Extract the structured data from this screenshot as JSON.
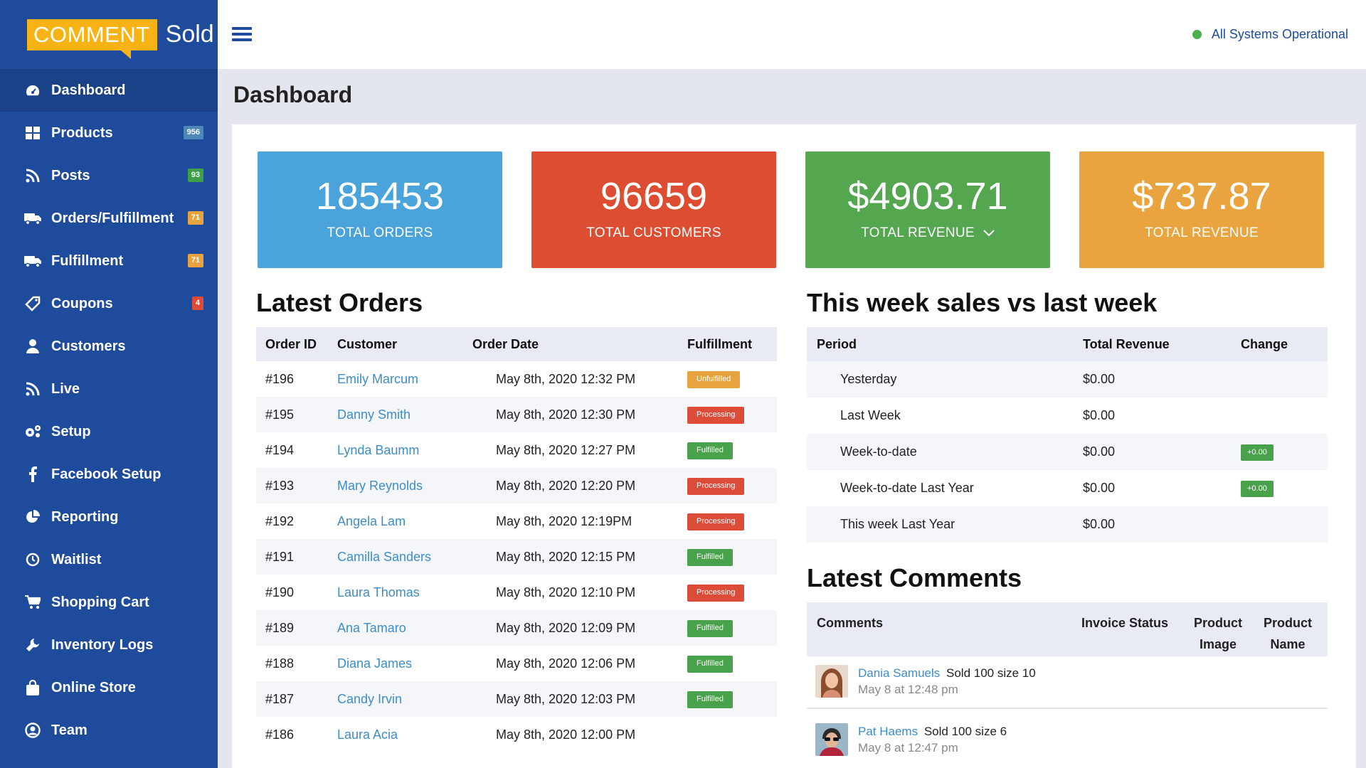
{
  "logo": {
    "comment": "COMMENT",
    "sold": "Sold"
  },
  "sidebar": {
    "items": [
      {
        "label": "Dashboard",
        "icon": "speedometer-icon",
        "active": true
      },
      {
        "label": "Products",
        "icon": "grid-icon",
        "badge": "956",
        "badge_color": "#4f87b8"
      },
      {
        "label": "Posts",
        "icon": "rss-icon",
        "badge": "93",
        "badge_color": "#3f9f46"
      },
      {
        "label": "Orders/Fulfillment",
        "icon": "truck-icon",
        "badge": "71",
        "badge_color": "#e8a23e"
      },
      {
        "label": "Fulfillment",
        "icon": "truck-icon",
        "badge": "71",
        "badge_color": "#e8a23e"
      },
      {
        "label": "Coupons",
        "icon": "tag-icon",
        "badge": "4",
        "badge_color": "#dd4b39"
      },
      {
        "label": "Customers",
        "icon": "user-icon"
      },
      {
        "label": "Live",
        "icon": "rss-icon"
      },
      {
        "label": "Setup",
        "icon": "gears-icon"
      },
      {
        "label": "Facebook Setup",
        "icon": "facebook-icon"
      },
      {
        "label": "Reporting",
        "icon": "pie-chart-icon"
      },
      {
        "label": "Waitlist",
        "icon": "clock-icon"
      },
      {
        "label": "Shopping Cart",
        "icon": "cart-icon"
      },
      {
        "label": "Inventory Logs",
        "icon": "wrench-icon"
      },
      {
        "label": "Online Store",
        "icon": "shopping-bag-icon"
      },
      {
        "label": "Team",
        "icon": "user-circle-icon"
      }
    ]
  },
  "header": {
    "status": "All Systems Operational",
    "status_color": "#4cae4c"
  },
  "page_title": "Dashboard",
  "stats": [
    {
      "value": "185453",
      "label": "TOTAL ORDERS",
      "color": "#4ba3db"
    },
    {
      "value": "96659",
      "label": "TOTAL CUSTOMERS",
      "color": "#dd4d32"
    },
    {
      "value": "$4903.71",
      "label": "TOTAL REVENUE",
      "color": "#54a74f",
      "dropdown": true
    },
    {
      "value": "$737.87",
      "label": "TOTAL REVENUE",
      "color": "#e9a440"
    }
  ],
  "latest_orders": {
    "title": "Latest Orders",
    "columns": [
      "Order ID",
      "Customer",
      "Order Date",
      "Fulfillment"
    ],
    "rows": [
      {
        "id": "#196",
        "customer": "Emily Marcum",
        "date": "May 8th, 2020 12:32 PM",
        "status": "Unfulfilled"
      },
      {
        "id": "#195",
        "customer": "Danny Smith",
        "date": "May 8th, 2020 12:30 PM",
        "status": "Processing"
      },
      {
        "id": "#194",
        "customer": "Lynda Baumm",
        "date": "May 8th, 2020 12:27 PM",
        "status": "Fulfilled"
      },
      {
        "id": "#193",
        "customer": "Mary Reynolds",
        "date": "May 8th, 2020 12:20 PM",
        "status": "Processing"
      },
      {
        "id": "#192",
        "customer": "Angela Lam",
        "date": "May 8th, 2020 12:19PM",
        "status": "Processing"
      },
      {
        "id": "#191",
        "customer": "Camilla Sanders",
        "date": "May 8th, 2020 12:15 PM",
        "status": "Fulfilled"
      },
      {
        "id": "#190",
        "customer": "Laura Thomas",
        "date": "May 8th, 2020 12:10 PM",
        "status": "Processing"
      },
      {
        "id": "#189",
        "customer": "Ana Tamaro",
        "date": "May 8th, 2020 12:09 PM",
        "status": "Fulfilled"
      },
      {
        "id": "#188",
        "customer": "Diana James",
        "date": "May 8th, 2020 12:06 PM",
        "status": "Fulfilled"
      },
      {
        "id": "#187",
        "customer": "Candy Irvin",
        "date": "May 8th, 2020 12:03 PM",
        "status": "Fulfilled"
      },
      {
        "id": "#186",
        "customer": "Laura Acia",
        "date": "May 8th, 2020 12:00 PM",
        "status": ""
      }
    ],
    "status_colors": {
      "Unfulfilled": "#e8a23e",
      "Processing": "#dd4b39",
      "Fulfilled": "#4aa14c"
    }
  },
  "weekly_sales": {
    "title": "This week sales vs last week",
    "columns": [
      "Period",
      "Total Revenue",
      "Change"
    ],
    "rows": [
      {
        "period": "Yesterday",
        "revenue": "$0.00",
        "change": ""
      },
      {
        "period": "Last Week",
        "revenue": "$0.00",
        "change": ""
      },
      {
        "period": "Week-to-date",
        "revenue": "$0.00",
        "change": "+0.00"
      },
      {
        "period": "Week-to-date Last Year",
        "revenue": "$0.00",
        "change": "+0.00"
      },
      {
        "period": "This week Last Year",
        "revenue": "$0.00",
        "change": ""
      }
    ]
  },
  "latest_comments": {
    "title": "Latest Comments",
    "columns": {
      "comments": "Comments",
      "invoice": "Invoice Status",
      "image_1": "Product",
      "image_2": "Image",
      "name_1": "Product",
      "name_2": "Name"
    },
    "items": [
      {
        "name": "Dania Samuels",
        "text": "Sold 100 size 10",
        "time": "May 8 at 12:48 pm"
      },
      {
        "name": "Pat Haems",
        "text": "Sold 100 size 6",
        "time": "May 8 at 12:47 pm"
      }
    ]
  }
}
